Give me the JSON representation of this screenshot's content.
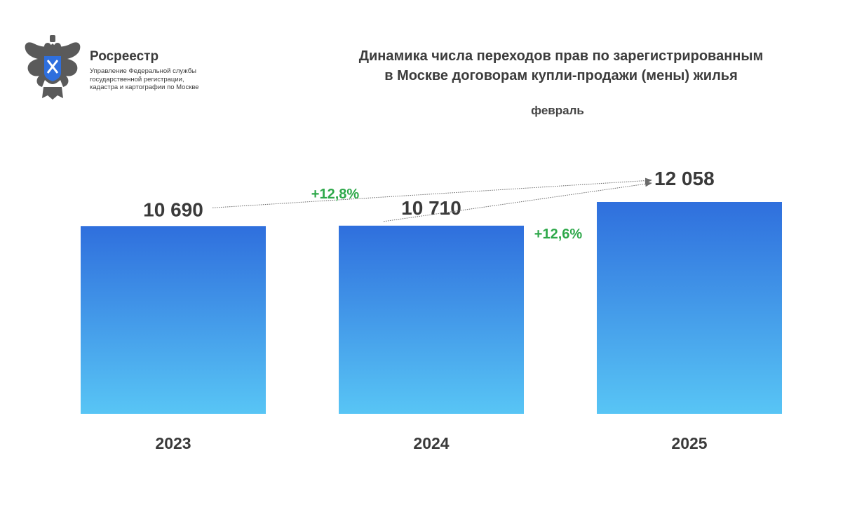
{
  "logo": {
    "name": "Росреестр",
    "subtitle_lines": [
      "Управление Федеральной службы",
      "государственной регистрации,",
      "кадастра и картографии по Москве"
    ]
  },
  "chart_data": {
    "type": "bar",
    "title_lines": [
      "Динамика числа переходов прав по зарегистрированным",
      "в Москве договорам купли-продажи (мены) жилья"
    ],
    "subtitle": "февраль",
    "categories": [
      "2023",
      "2024",
      "2025"
    ],
    "values": [
      10690,
      10710,
      12058
    ],
    "value_labels": [
      "10 690",
      "10 710",
      "12 058"
    ],
    "ylim": [
      0,
      12058
    ],
    "annotations": [
      {
        "text": "+12,8%",
        "from": "2023",
        "to": "2025"
      },
      {
        "text": "+12,6%",
        "from": "2024",
        "to": "2025"
      }
    ],
    "colors": {
      "bar_top": "#2f6fdd",
      "bar_bottom": "#58c5f5",
      "label": "#3a3a3a",
      "change": "#2ea84a",
      "arrow": "#6a6a6a"
    },
    "grid": false,
    "legend": "none"
  }
}
